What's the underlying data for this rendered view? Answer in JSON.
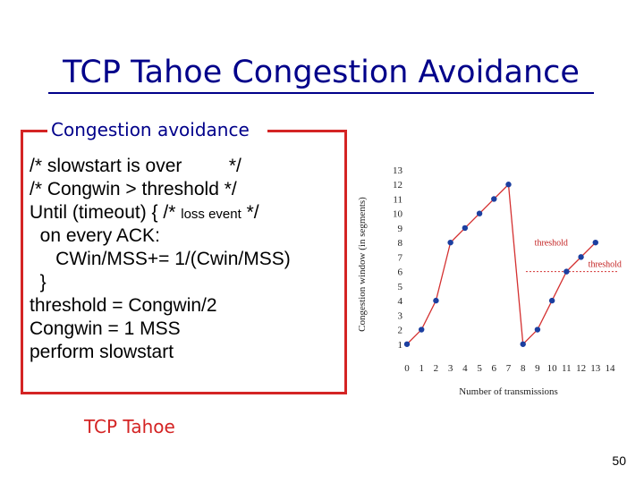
{
  "slide": {
    "title": "TCP Tahoe Congestion Avoidance",
    "box_label": "Congestion avoidance",
    "code_lines": [
      {
        "text": "/* slowstart is over         */",
        "small": ""
      },
      {
        "text": "/* Congwin > threshold */",
        "small": ""
      },
      {
        "text": "Until (timeout) { /* ",
        "small": "loss event",
        "tail": " */"
      },
      {
        "text": "  on every ACK:",
        "small": ""
      },
      {
        "text": "     CWin/MSS+= 1/(Cwin/MSS)",
        "small": ""
      },
      {
        "text": "  }",
        "small": ""
      },
      {
        "text": "threshold = Congwin/2",
        "small": ""
      },
      {
        "text": "Congwin = 1 MSS",
        "small": ""
      },
      {
        "text": "perform slowstart",
        "small": ""
      }
    ],
    "footer_label": "TCP Tahoe",
    "page_number": "50"
  },
  "colors": {
    "title": "#00008a",
    "box_border": "#d42424",
    "series_line": "#d43030",
    "series_marker": "#1c3fa0",
    "threshold_line": "#d43030"
  },
  "chart_data": {
    "type": "line",
    "xlabel": "Number of transmissions",
    "ylabel": "Congestion window (in segments)",
    "x_ticks": [
      0,
      1,
      2,
      3,
      4,
      5,
      6,
      7,
      8,
      9,
      10,
      11,
      12,
      13,
      14
    ],
    "y_ticks": [
      1,
      2,
      3,
      4,
      5,
      6,
      7,
      8,
      9,
      10,
      11,
      12,
      13
    ],
    "xlim": [
      0,
      14
    ],
    "ylim": [
      0,
      13
    ],
    "series": [
      {
        "x": [
          0,
          1,
          2,
          3,
          4,
          5,
          6,
          7,
          8,
          9,
          10,
          11,
          12,
          13
        ],
        "y": [
          1,
          2,
          4,
          8,
          9,
          10,
          11,
          12,
          1,
          2,
          4,
          6,
          7,
          8
        ]
      }
    ],
    "annotations": [
      {
        "text": "threshold",
        "x": 8.8,
        "y": 7.8,
        "color": "#c21f1f"
      },
      {
        "text": "threshold",
        "x": 12.5,
        "y": 6.3,
        "color": "#c21f1f"
      }
    ],
    "threshold_segment": {
      "x": [
        8.2,
        14.5
      ],
      "y": [
        6,
        6
      ]
    }
  }
}
